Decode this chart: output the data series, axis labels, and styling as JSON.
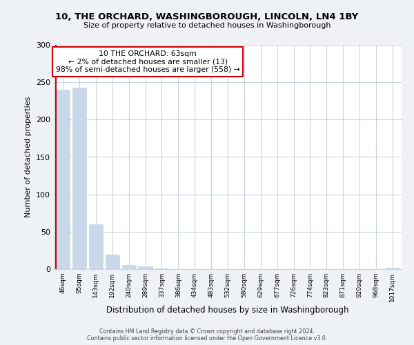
{
  "title": "10, THE ORCHARD, WASHINGBOROUGH, LINCOLN, LN4 1BY",
  "subtitle": "Size of property relative to detached houses in Washingborough",
  "xlabel": "Distribution of detached houses by size in Washingborough",
  "ylabel": "Number of detached properties",
  "footer_line1": "Contains HM Land Registry data © Crown copyright and database right 2024.",
  "footer_line2": "Contains public sector information licensed under the Open Government Licence v3.0.",
  "bar_labels": [
    "46sqm",
    "95sqm",
    "143sqm",
    "192sqm",
    "240sqm",
    "289sqm",
    "337sqm",
    "386sqm",
    "434sqm",
    "483sqm",
    "532sqm",
    "580sqm",
    "629sqm",
    "677sqm",
    "726sqm",
    "774sqm",
    "823sqm",
    "871sqm",
    "920sqm",
    "968sqm",
    "1017sqm"
  ],
  "bar_values": [
    240,
    243,
    60,
    19,
    6,
    4,
    1,
    0,
    0,
    0,
    0,
    0,
    0,
    0,
    0,
    0,
    0,
    0,
    0,
    0,
    2
  ],
  "bar_color": "#c8d8e8",
  "marker_color": "#cc0000",
  "annotation_title": "10 THE ORCHARD: 63sqm",
  "annotation_line2": "← 2% of detached houses are smaller (13)",
  "annotation_line3": "98% of semi-detached houses are larger (558) →",
  "annotation_box_color": "#ffffff",
  "annotation_box_edge_color": "#cc0000",
  "ylim": [
    0,
    300
  ],
  "yticks": [
    0,
    50,
    100,
    150,
    200,
    250,
    300
  ],
  "bg_color": "#eef2f6",
  "plot_bg_color": "#ffffff",
  "grid_color": "#c8d4e0"
}
